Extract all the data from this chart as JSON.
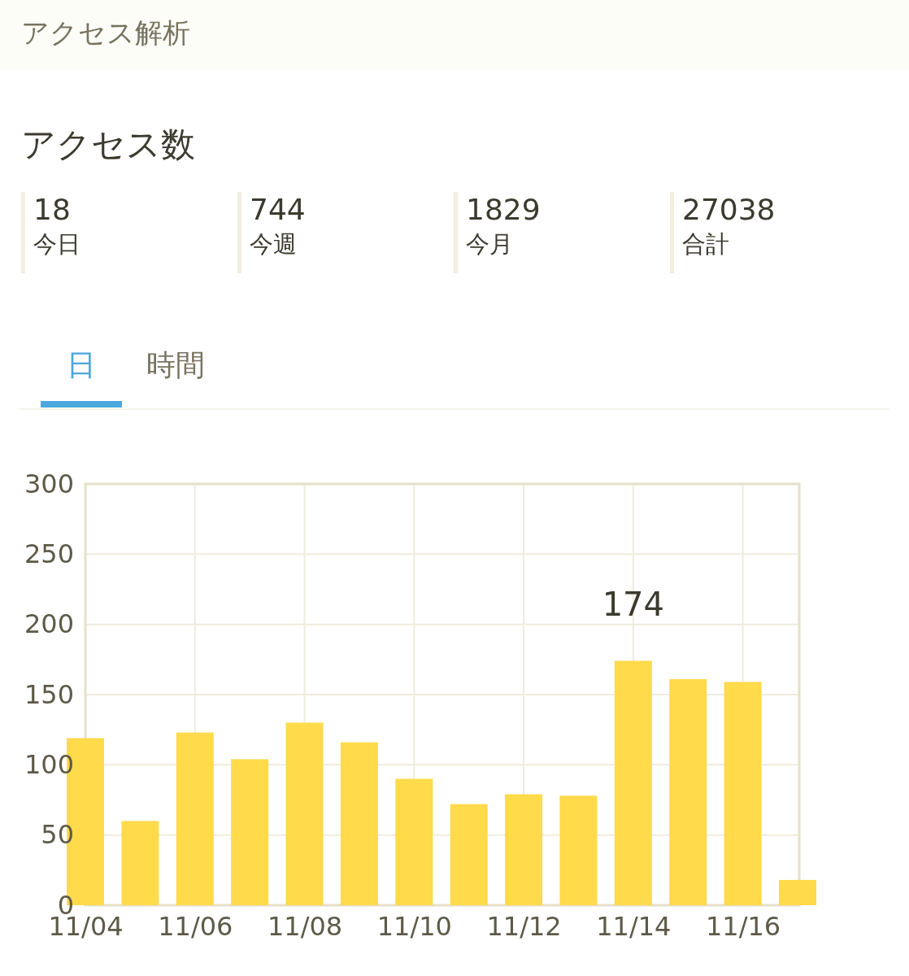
{
  "chart_data": {
    "type": "bar",
    "title": "アクセス解析",
    "subtitle": "アクセス数",
    "annotations": [
      "18",
      "今日",
      "744",
      "今週",
      "1829",
      "今月",
      "27038",
      "合計",
      "日",
      "時間"
    ],
    "categories": [
      "11/04",
      null,
      "11/06",
      null,
      "11/08",
      null,
      "11/10",
      null,
      "11/12",
      null,
      "11/14",
      null,
      "11/16",
      null
    ],
    "values": [
      119,
      60,
      123,
      104,
      130,
      116,
      90,
      72,
      79,
      78,
      174,
      161,
      159,
      18
    ],
    "value_labels": [
      null,
      null,
      null,
      null,
      null,
      null,
      null,
      null,
      null,
      null,
      "174",
      null,
      null,
      null
    ],
    "color": "#ffda4a",
    "ylim": [
      0,
      300
    ],
    "yticks": [
      0,
      50,
      100,
      150,
      200,
      250,
      300
    ],
    "grid": true
  }
}
